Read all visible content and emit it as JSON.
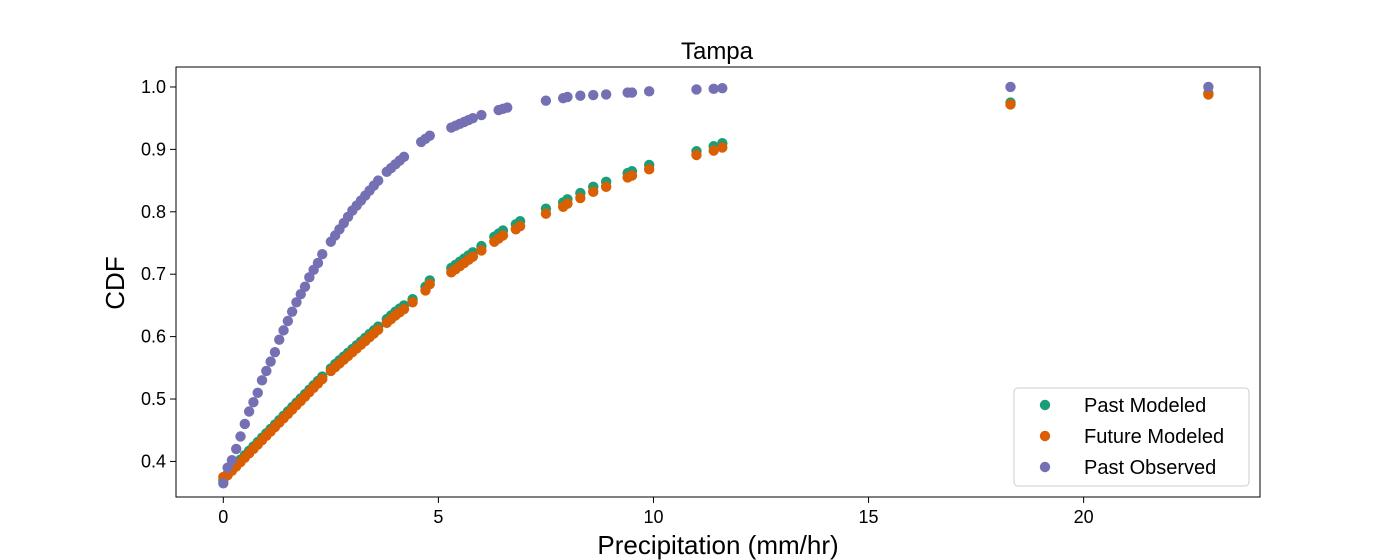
{
  "chart_data": {
    "type": "scatter",
    "title": "Tampa",
    "xlabel": "Precipitation (mm/hr)",
    "ylabel": "CDF",
    "xlim": [
      -1.1,
      24.1
    ],
    "ylim": [
      0.343,
      1.032
    ],
    "xticks": [
      0,
      5,
      10,
      15,
      20
    ],
    "xtick_labels": [
      "0",
      "5",
      "10",
      "15",
      "20"
    ],
    "yticks": [
      0.4,
      0.5,
      0.6,
      0.7,
      0.8,
      0.9,
      1.0
    ],
    "ytick_labels": [
      "0.4",
      "0.5",
      "0.6",
      "0.7",
      "0.8",
      "0.9",
      "1.0"
    ],
    "grid": false,
    "legend_position": "lower-right",
    "series": [
      {
        "name": "Past Modeled",
        "color": "#1b9e77",
        "x": [
          0,
          0.1,
          0.2,
          0.3,
          0.4,
          0.5,
          0.6,
          0.7,
          0.8,
          0.9,
          1.0,
          1.1,
          1.2,
          1.3,
          1.4,
          1.5,
          1.6,
          1.7,
          1.8,
          1.9,
          2.0,
          2.1,
          2.2,
          2.3,
          2.5,
          2.6,
          2.7,
          2.8,
          2.9,
          3.0,
          3.1,
          3.2,
          3.3,
          3.4,
          3.5,
          3.6,
          3.8,
          3.9,
          4.0,
          4.1,
          4.2,
          4.4,
          4.7,
          4.8,
          5.3,
          5.4,
          5.5,
          5.6,
          5.7,
          5.8,
          6.0,
          6.3,
          6.4,
          6.5,
          6.8,
          6.9,
          7.5,
          7.9,
          8.0,
          8.3,
          8.6,
          8.9,
          9.4,
          9.5,
          9.9,
          11.0,
          11.4,
          11.6,
          18.3,
          22.9
        ],
        "y": [
          0.37,
          0.38,
          0.387,
          0.395,
          0.403,
          0.41,
          0.417,
          0.424,
          0.431,
          0.438,
          0.445,
          0.452,
          0.459,
          0.466,
          0.473,
          0.48,
          0.487,
          0.494,
          0.501,
          0.508,
          0.515,
          0.522,
          0.529,
          0.536,
          0.549,
          0.556,
          0.562,
          0.568,
          0.574,
          0.58,
          0.586,
          0.592,
          0.598,
          0.604,
          0.61,
          0.616,
          0.628,
          0.634,
          0.64,
          0.645,
          0.65,
          0.66,
          0.68,
          0.69,
          0.71,
          0.715,
          0.72,
          0.725,
          0.73,
          0.735,
          0.745,
          0.76,
          0.765,
          0.77,
          0.78,
          0.785,
          0.805,
          0.815,
          0.82,
          0.83,
          0.84,
          0.848,
          0.862,
          0.865,
          0.875,
          0.897,
          0.905,
          0.91,
          0.975,
          0.99
        ]
      },
      {
        "name": "Future Modeled",
        "color": "#d95f02",
        "x": [
          0,
          0.1,
          0.2,
          0.3,
          0.4,
          0.5,
          0.6,
          0.7,
          0.8,
          0.9,
          1.0,
          1.1,
          1.2,
          1.3,
          1.4,
          1.5,
          1.6,
          1.7,
          1.8,
          1.9,
          2.0,
          2.1,
          2.2,
          2.3,
          2.5,
          2.6,
          2.7,
          2.8,
          2.9,
          3.0,
          3.1,
          3.2,
          3.3,
          3.4,
          3.5,
          3.6,
          3.8,
          3.9,
          4.0,
          4.1,
          4.2,
          4.4,
          4.7,
          4.8,
          5.3,
          5.4,
          5.5,
          5.6,
          5.7,
          5.8,
          6.0,
          6.3,
          6.4,
          6.5,
          6.8,
          6.9,
          7.5,
          7.9,
          8.0,
          8.3,
          8.6,
          8.9,
          9.4,
          9.5,
          9.9,
          11.0,
          11.4,
          11.6,
          18.3,
          22.9
        ],
        "y": [
          0.375,
          0.378,
          0.385,
          0.392,
          0.399,
          0.406,
          0.413,
          0.42,
          0.427,
          0.434,
          0.441,
          0.448,
          0.455,
          0.462,
          0.469,
          0.476,
          0.483,
          0.49,
          0.497,
          0.504,
          0.511,
          0.518,
          0.525,
          0.532,
          0.545,
          0.551,
          0.557,
          0.563,
          0.569,
          0.575,
          0.581,
          0.587,
          0.593,
          0.599,
          0.605,
          0.611,
          0.622,
          0.628,
          0.634,
          0.639,
          0.644,
          0.655,
          0.674,
          0.684,
          0.703,
          0.708,
          0.713,
          0.718,
          0.723,
          0.728,
          0.738,
          0.752,
          0.757,
          0.762,
          0.772,
          0.777,
          0.797,
          0.808,
          0.813,
          0.822,
          0.832,
          0.84,
          0.855,
          0.858,
          0.868,
          0.891,
          0.898,
          0.903,
          0.972,
          0.988
        ]
      },
      {
        "name": "Past Observed",
        "color": "#7570b3",
        "x": [
          0,
          0.1,
          0.2,
          0.3,
          0.4,
          0.5,
          0.6,
          0.7,
          0.8,
          0.9,
          1.0,
          1.1,
          1.2,
          1.3,
          1.4,
          1.5,
          1.6,
          1.7,
          1.8,
          1.9,
          2.0,
          2.1,
          2.2,
          2.3,
          2.5,
          2.6,
          2.7,
          2.8,
          2.9,
          3.0,
          3.1,
          3.2,
          3.3,
          3.4,
          3.5,
          3.6,
          3.8,
          3.9,
          4.0,
          4.1,
          4.2,
          4.6,
          4.7,
          4.8,
          5.3,
          5.4,
          5.5,
          5.6,
          5.7,
          5.8,
          6.0,
          6.4,
          6.5,
          6.6,
          7.5,
          7.9,
          8.0,
          8.3,
          8.6,
          8.9,
          9.4,
          9.5,
          9.9,
          11.0,
          11.4,
          11.6,
          18.3,
          22.9
        ],
        "y": [
          0.365,
          0.39,
          0.402,
          0.42,
          0.44,
          0.46,
          0.48,
          0.495,
          0.51,
          0.53,
          0.545,
          0.56,
          0.575,
          0.595,
          0.61,
          0.625,
          0.64,
          0.655,
          0.668,
          0.68,
          0.695,
          0.707,
          0.718,
          0.732,
          0.752,
          0.762,
          0.772,
          0.782,
          0.792,
          0.802,
          0.81,
          0.818,
          0.826,
          0.834,
          0.842,
          0.85,
          0.864,
          0.87,
          0.876,
          0.882,
          0.888,
          0.912,
          0.917,
          0.922,
          0.935,
          0.938,
          0.941,
          0.944,
          0.947,
          0.95,
          0.955,
          0.963,
          0.965,
          0.967,
          0.978,
          0.982,
          0.984,
          0.986,
          0.987,
          0.988,
          0.991,
          0.991,
          0.993,
          0.996,
          0.997,
          0.998,
          1.0,
          1.0
        ]
      }
    ]
  }
}
